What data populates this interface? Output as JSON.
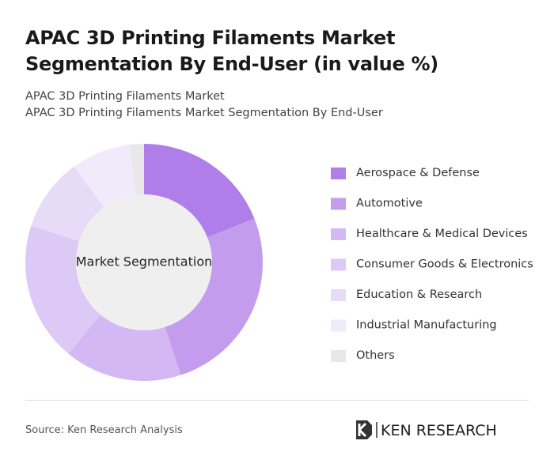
{
  "chart_data": {
    "type": "donut",
    "title": "APAC 3D Printing Filaments Market Segmentation By End-User (in value %)",
    "subtitle": "APAC 3D Printing Filaments Market",
    "subtitle2": "APAC 3D Printing Filaments Market Segmentation By End-User",
    "center_label": "Market Segmentation",
    "categories": [
      "Aerospace & Defense",
      "Automotive",
      "Healthcare & Medical Devices",
      "Consumer Goods & Electronics",
      "Education & Research",
      "Industrial Manufacturing",
      "Others"
    ],
    "values": [
      19,
      26,
      16,
      19,
      10,
      8,
      2
    ],
    "colors": [
      "#b07ee9",
      "#c49cee",
      "#d3b8f3",
      "#ddc9f5",
      "#e8dbf8",
      "#f1eafb",
      "#e8e8e8"
    ],
    "source": "Source: Ken Research Analysis",
    "brand": "KEN RESEARCH"
  }
}
